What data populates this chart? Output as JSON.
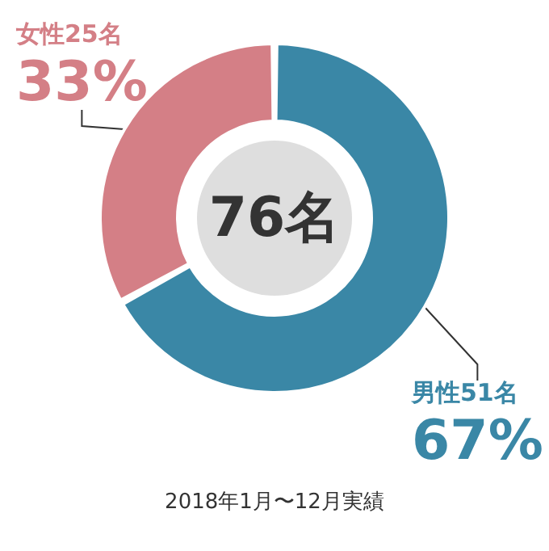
{
  "chart_data": {
    "type": "donut",
    "categories": [
      "男性51名",
      "女性25名"
    ],
    "values": [
      67,
      33
    ],
    "value_labels": [
      "67%",
      "33%"
    ],
    "colors": [
      "#3a87a6",
      "#d47f86"
    ],
    "annotations": [
      "76名",
      "2018年1月〜12月実績"
    ],
    "legend": false
  }
}
